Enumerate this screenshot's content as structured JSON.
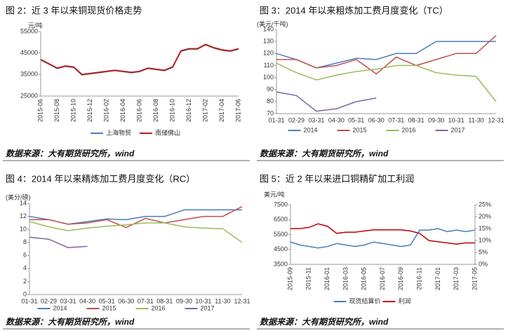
{
  "chart_data": [
    {
      "type": "line",
      "title": "图 2：近 3 年以来铜现货价格走势",
      "y_label": "元/吨",
      "source": "数据来源：大有期货研究所，wind",
      "categories": [
        "2015-06",
        null,
        "2015-08",
        null,
        "2015-10",
        null,
        "2015-12",
        null,
        "2016-02",
        null,
        "2016-04",
        null,
        "2016-06",
        null,
        "2016-08",
        null,
        "2016-10",
        null,
        "2016-12",
        null,
        "2017-02",
        null,
        "2017-04",
        null,
        "2017-06"
      ],
      "x_rotated": true,
      "ylim": [
        25000,
        55000
      ],
      "yticks": [
        25000,
        35000,
        45000,
        55000
      ],
      "series": [
        {
          "name": "上海物贸",
          "color": "#4a7ebb",
          "values": [
            41800,
            39800,
            37800,
            38800,
            38300,
            34800,
            35300,
            35800,
            36300,
            36800,
            36300,
            35800,
            36300,
            37800,
            37300,
            36800,
            38300,
            45800,
            46800,
            46800,
            48800,
            47300,
            46300,
            45800,
            46800
          ]
        },
        {
          "name": "南储佛山",
          "color": "#b22222",
          "values": [
            42000,
            40000,
            38000,
            39000,
            38500,
            35000,
            35500,
            36000,
            36500,
            37000,
            36500,
            36000,
            36500,
            38000,
            37500,
            37000,
            38500,
            46000,
            47000,
            47000,
            49000,
            47500,
            46500,
            46000,
            47000
          ]
        }
      ]
    },
    {
      "type": "line",
      "title": "图 3：2014 年以来粗炼加工费月度变化（TC）",
      "y_label": "(美元/千吨)",
      "source": "数据来源：大有期货研究所，wind",
      "categories": [
        "01-31",
        "02-29",
        "03-31",
        "04-30",
        "05-31",
        "06-30",
        "07-31",
        "08-31",
        "09-30",
        "10-31",
        "11-30",
        "12-31"
      ],
      "x_rotated": false,
      "ylim": [
        70,
        140
      ],
      "yticks": [
        70,
        80,
        90,
        100,
        110,
        120,
        130,
        140
      ],
      "series": [
        {
          "name": "2014",
          "color": "#4a7ebb",
          "values": [
            120,
            115,
            108,
            112,
            116,
            115,
            120,
            120,
            130,
            130,
            130,
            130
          ]
        },
        {
          "name": "2015",
          "color": "#c0504d",
          "values": [
            115,
            115,
            108,
            110,
            115,
            103,
            117,
            110,
            115,
            120,
            120,
            135
          ]
        },
        {
          "name": "2016",
          "color": "#9bbb59",
          "values": [
            112,
            104,
            98,
            102,
            105,
            107,
            110,
            110,
            104,
            102,
            101,
            80
          ]
        },
        {
          "name": "2017",
          "color": "#8064a2",
          "values": [
            88,
            85,
            72,
            74,
            80,
            83,
            null,
            null,
            null,
            null,
            null,
            null
          ]
        }
      ]
    },
    {
      "type": "line",
      "title": "图 4：2014 年以来精炼加工费月度变化（RC）",
      "y_label": "(美分/磅)",
      "source": "数据来源：大有期货研究所，wind",
      "categories": [
        "01-31",
        "02-29",
        "03-31",
        "04-30",
        "05-31",
        "06-30",
        "07-31",
        "08-31",
        "09-30",
        "10-31",
        "11-30",
        "12-31"
      ],
      "x_rotated": false,
      "ylim": [
        0,
        14
      ],
      "yticks": [
        0,
        2,
        4,
        6,
        8,
        10,
        12,
        14
      ],
      "series": [
        {
          "name": "2014",
          "color": "#4a7ebb",
          "values": [
            12,
            11.5,
            10.8,
            11.2,
            11.6,
            11.5,
            12,
            12,
            13,
            13,
            13,
            13
          ]
        },
        {
          "name": "2015",
          "color": "#c0504d",
          "values": [
            11.5,
            11.5,
            10.8,
            11,
            11.5,
            10.3,
            11.7,
            11,
            11.5,
            12,
            12,
            13.5
          ]
        },
        {
          "name": "2016",
          "color": "#9bbb59",
          "values": [
            11.2,
            10.4,
            9.8,
            10.2,
            10.5,
            10.7,
            11,
            11,
            10.4,
            10.2,
            10.1,
            8
          ]
        },
        {
          "name": "2017",
          "color": "#8064a2",
          "values": [
            8.8,
            8.5,
            7.2,
            7.4,
            null,
            null,
            null,
            null,
            null,
            null,
            null,
            null
          ]
        }
      ]
    },
    {
      "type": "line",
      "title": "图 5：近 2 年以来进口铜精矿加工利润",
      "y_label": "美元/吨",
      "source": "数据来源：大有期货研究所，wind",
      "categories": [
        "2015-09",
        null,
        "2015-11",
        null,
        "2016-01",
        null,
        "2016-03",
        null,
        "2016-05",
        null,
        "2016-07",
        null,
        "2016-09",
        null,
        "2016-11",
        null,
        "2017-01",
        null,
        "2017-03",
        null,
        "2017-05"
      ],
      "x_rotated": true,
      "ylim": [
        3500,
        7500
      ],
      "yticks": [
        3500,
        4500,
        5500,
        6500,
        7500
      ],
      "y2lim": [
        0,
        25
      ],
      "y2ticks": [
        {
          "value": 0,
          "label": "0%"
        },
        {
          "value": 5,
          "label": "5%"
        },
        {
          "value": 10,
          "label": "10%"
        },
        {
          "value": 15,
          "label": "15%"
        },
        {
          "value": 20,
          "label": "20%"
        },
        {
          "value": 25,
          "label": "25%"
        }
      ],
      "series": [
        {
          "name": "现货结算价",
          "color": "#4a7ebb",
          "values": [
            5000,
            4800,
            4700,
            4600,
            4700,
            4900,
            4800,
            4700,
            4800,
            5000,
            4900,
            4800,
            4700,
            4800,
            5800,
            5800,
            5900,
            5700,
            5800,
            5700,
            5800
          ]
        },
        {
          "name": "利润",
          "color": "#c00000",
          "axis": "y2",
          "values": [
            15,
            15,
            15.5,
            17,
            16,
            13,
            13.5,
            13.5,
            14,
            14.5,
            14.5,
            14.5,
            14.5,
            14,
            13,
            10,
            9.5,
            9,
            8.5,
            9,
            9
          ]
        }
      ]
    }
  ]
}
